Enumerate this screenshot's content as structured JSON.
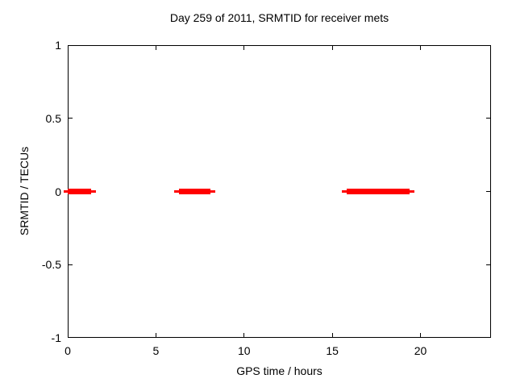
{
  "chart_data": {
    "type": "line",
    "title": "Day 259 of 2011, SRMTID for receiver mets",
    "xlabel": "GPS time / hours",
    "ylabel": "SRMTID / TECUs",
    "xlim": [
      0,
      24
    ],
    "ylim": [
      -1,
      1
    ],
    "xticks": [
      0,
      5,
      10,
      15,
      20
    ],
    "xtick_labels": [
      "0",
      "5",
      "10",
      "15",
      "20"
    ],
    "yticks": [
      1,
      0.5,
      0,
      -0.5,
      -1
    ],
    "ytick_labels": [
      "1",
      "0.5",
      "0",
      "-0.5",
      "-1"
    ],
    "grid": true,
    "grid_style": "dashed",
    "legend_position": "none",
    "series": [
      {
        "name": "SRMTID",
        "color": "#ff0000",
        "segments": [
          {
            "x_start": 0.0,
            "x_end": 1.33,
            "y": 0
          },
          {
            "x_start": 6.3,
            "x_end": 8.1,
            "y": 0
          },
          {
            "x_start": 15.8,
            "x_end": 19.4,
            "y": 0
          }
        ],
        "thin_extension_hours": 0.25
      }
    ]
  },
  "colors": {
    "series": "#ff0000",
    "grid": "#999999",
    "axis": "#000000",
    "background": "#ffffff",
    "text": "#000000"
  }
}
